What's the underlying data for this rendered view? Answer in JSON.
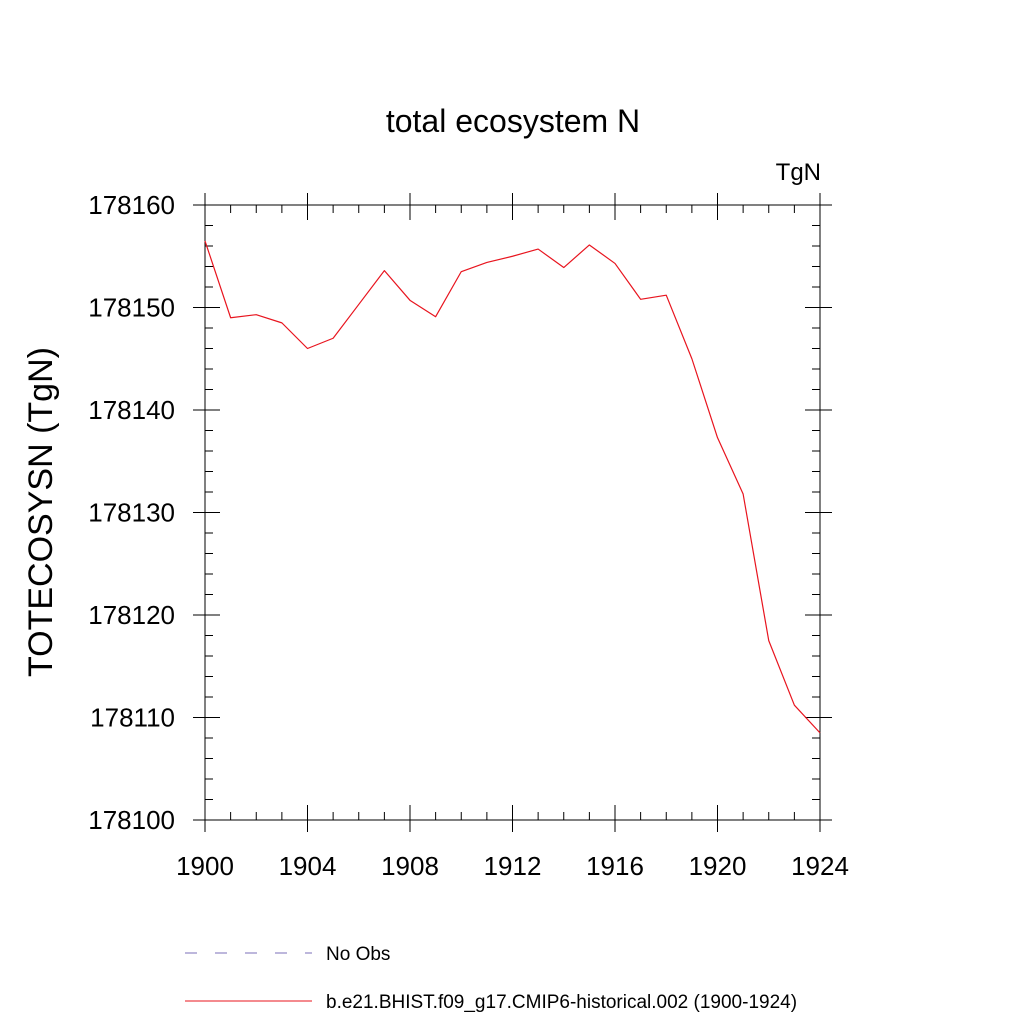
{
  "chart_data": {
    "type": "line",
    "title": "total ecosystem N",
    "units_label": "TgN",
    "xlabel": "",
    "ylabel": "TOTECOSYSN  (TgN)",
    "xlim": [
      1900,
      1924
    ],
    "ylim": [
      178100,
      178160
    ],
    "x_ticks": [
      1900,
      1904,
      1908,
      1912,
      1916,
      1920,
      1924
    ],
    "y_ticks": [
      178100,
      178110,
      178120,
      178130,
      178140,
      178150,
      178160
    ],
    "x_minor_step": 1,
    "y_minor_step": 2,
    "grid": false,
    "legend_position": "bottom",
    "series": [
      {
        "name": "b.e21.BHIST.f09_g17.CMIP6-historical.002 (1900-1924)",
        "color": "#e8141e",
        "style": "solid",
        "x": [
          1900,
          1901,
          1902,
          1903,
          1904,
          1905,
          1906,
          1907,
          1908,
          1909,
          1910,
          1911,
          1912,
          1913,
          1914,
          1915,
          1916,
          1917,
          1918,
          1919,
          1920,
          1921,
          1922,
          1923,
          1924
        ],
        "values": [
          178156.5,
          178149.0,
          178149.3,
          178148.5,
          178146.0,
          178147.0,
          178150.3,
          178153.6,
          178150.7,
          178149.1,
          178153.5,
          178154.4,
          178155.0,
          178155.7,
          178153.9,
          178156.1,
          178154.3,
          178150.8,
          178151.2,
          178145.0,
          178137.3,
          178131.8,
          178117.5,
          178111.2,
          178108.5
        ]
      }
    ],
    "legend": [
      {
        "label": "No Obs",
        "color": "#7b6fb8",
        "style": "dashed"
      },
      {
        "label": "b.e21.BHIST.f09_g17.CMIP6-historical.002 (1900-1924)",
        "color": "#e8141e",
        "style": "solid"
      }
    ]
  }
}
